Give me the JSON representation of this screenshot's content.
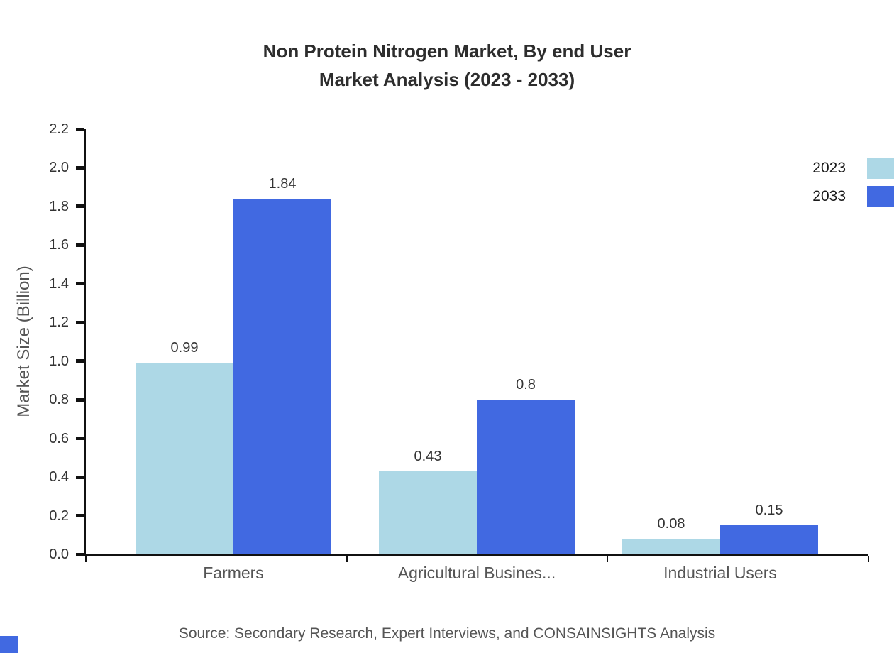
{
  "page": {
    "title_line1": "Non Protein Nitrogen Market, By end User",
    "title_line2": "Market Analysis (2023 - 2033)",
    "source": "Source: Secondary Research, Expert Interviews, and CONSAINSIGHTS Analysis"
  },
  "chart_data": {
    "type": "bar",
    "title": "Non Protein Nitrogen Market, By end User Market Analysis (2023 - 2033)",
    "categories": [
      "Farmers",
      "Agricultural Busines...",
      "Industrial Users"
    ],
    "series": [
      {
        "name": "2023",
        "color": "#add8e6",
        "values": [
          0.99,
          0.43,
          0.08
        ]
      },
      {
        "name": "2033",
        "color": "#4169e1",
        "values": [
          1.84,
          0.8,
          0.15
        ]
      }
    ],
    "xlabel": "",
    "ylabel": "Market Size (Billion)",
    "ylim": [
      0,
      2.2
    ],
    "ytick_step": 0.2,
    "ytick_labels": [
      "0.0",
      "0.2",
      "0.4",
      "0.6",
      "0.8",
      "1.0",
      "1.2",
      "1.4",
      "1.6",
      "1.8",
      "2.0",
      "2.2"
    ],
    "grid": false,
    "legend_position": "top-right",
    "value_labels": true
  },
  "colors": {
    "background": "#ffffff",
    "axis": "#111111",
    "title_text": "#2d2d2d",
    "tick_text": "#333333",
    "category_text": "#555555",
    "source_text": "#555555",
    "series_2023": "#add8e6",
    "series_2033": "#4169e1",
    "corner_accent": "#4169e1"
  }
}
